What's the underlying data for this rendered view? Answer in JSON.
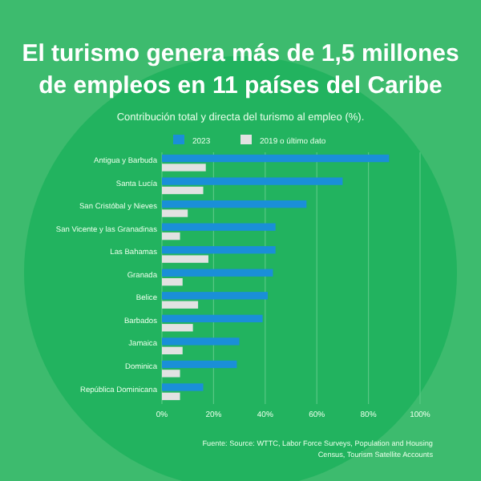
{
  "chart_data": {
    "type": "bar",
    "orientation": "horizontal",
    "title": "El turismo genera más de 1,5 millones de empleos en 11 países del Caribe",
    "subtitle": "Contribución total y directa del turismo al empleo (%).",
    "categories": [
      "Antigua y Barbuda",
      "Santa Lucía",
      "San Cristóbal y Nieves",
      "San Vicente y las Granadinas",
      "Las Bahamas",
      "Granada",
      "Belice",
      "Barbados",
      "Jamaica",
      "Dominica",
      "República Dominicana"
    ],
    "series": [
      {
        "name": "2023",
        "color": "#1a8fd8",
        "values": [
          88,
          70,
          56,
          44,
          44,
          43,
          41,
          39,
          30,
          29,
          16
        ]
      },
      {
        "name": "2019 o último dato",
        "color": "#e2e2e2",
        "values": [
          17,
          16,
          10,
          7,
          18,
          8,
          14,
          12,
          8,
          7,
          7
        ]
      }
    ],
    "xlim": [
      0,
      100
    ],
    "xticks": [
      {
        "value": 0,
        "label": "0%"
      },
      {
        "value": 20,
        "label": "20%"
      },
      {
        "value": 40,
        "label": "40%"
      },
      {
        "value": 60,
        "label": "60%"
      },
      {
        "value": 80,
        "label": "80%"
      },
      {
        "value": 100,
        "label": "100%"
      }
    ],
    "grid": "x",
    "legend": "top",
    "annotations": [
      "Fuente: Source: WTTC, Labor Force Surveys, Population and Housing Census, Tourism Satellite Accounts"
    ]
  }
}
